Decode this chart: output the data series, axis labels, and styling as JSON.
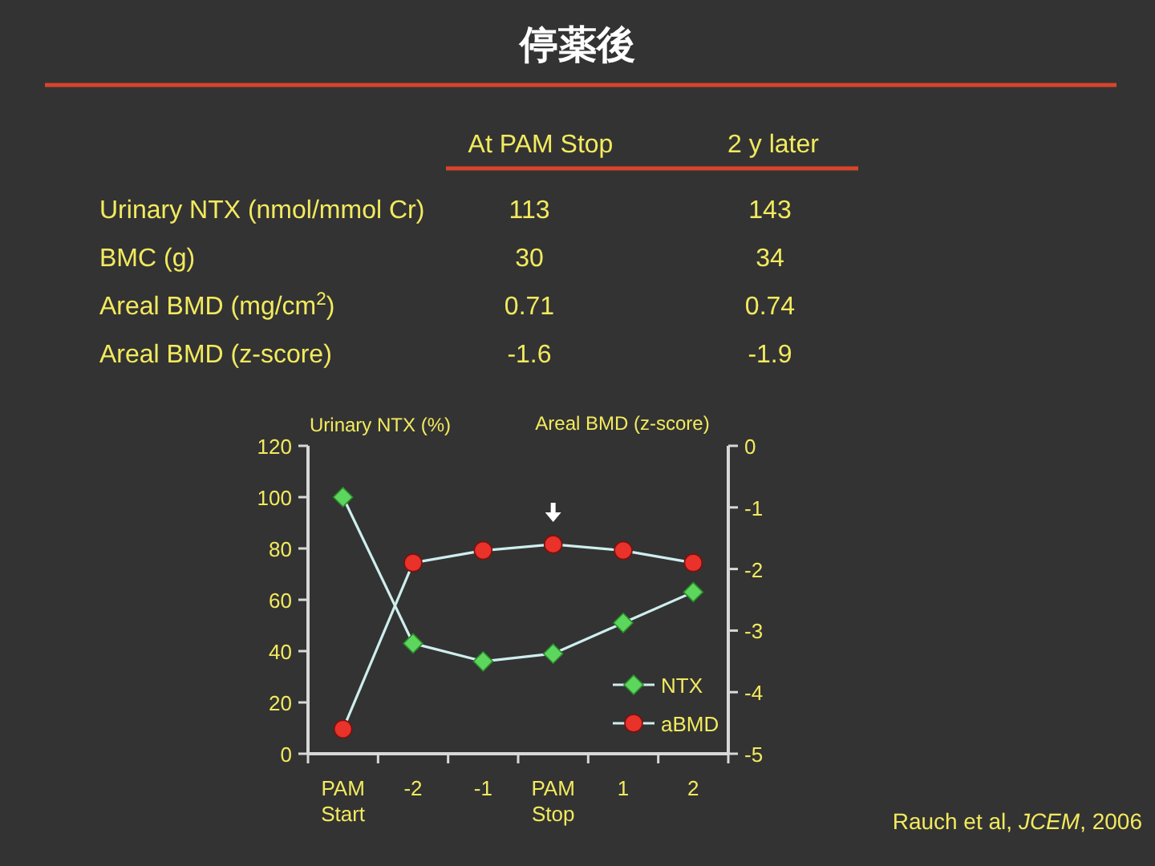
{
  "chart_data": [
    {
      "type": "other",
      "title": "停薬後",
      "annotations": [
        "At PAM Stop",
        "2 y later",
        "Urinary NTX (nmol/mmol Cr)",
        "113",
        "143",
        "BMC (g)",
        "30",
        "34",
        "Areal BMD (mg/cm$^{2}$)",
        "0.71",
        "0.74",
        "Areal BMD (z-score)",
        "-1.6",
        "-1.9"
      ]
    },
    {
      "type": "line",
      "categories": [
        "PAM Start",
        "-2",
        "-1",
        "PAM Stop",
        "1",
        "2"
      ],
      "series": [
        {
          "name": "NTX",
          "color": "#5cd65c",
          "marker": "diamond",
          "values": [
            100,
            43,
            36,
            39,
            51,
            63
          ]
        },
        {
          "name": "aBMD",
          "color": "#e8322a",
          "marker": "circle",
          "axis": "y2",
          "values": [
            -4.6,
            -1.9,
            -1.7,
            -1.6,
            -1.7,
            -1.9
          ]
        }
      ],
      "ylabel": "Urinary NTX (%)",
      "y2label": "Areal BMD (z-score)",
      "ylim": [
        0,
        120
      ],
      "yticks": [
        0,
        20,
        40,
        60,
        80,
        100,
        120
      ],
      "y2lim": [
        -5,
        0
      ],
      "y2ticks": [
        -5,
        -4,
        -3,
        -2,
        -1,
        0
      ],
      "legend": "bottom right",
      "annotations": [
        "Rauch et al, *JCEM*, 2006"
      ]
    }
  ]
}
